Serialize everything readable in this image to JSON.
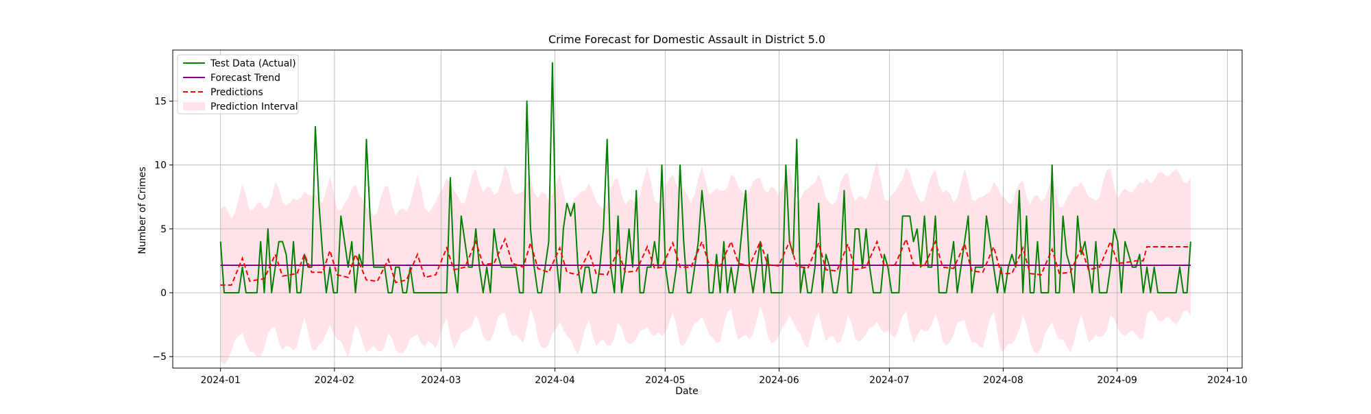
{
  "chart_data": {
    "type": "line",
    "title": "Crime Forecast for Domestic Assault in District 5.0",
    "xlabel": "Date",
    "ylabel": "Number of Crimes",
    "x_ticks": [
      "2024-01",
      "2024-02",
      "2024-03",
      "2024-04",
      "2024-05",
      "2024-06",
      "2024-07",
      "2024-08",
      "2024-09",
      "2024-10"
    ],
    "y_ticks": [
      "−5",
      "0",
      "5",
      "10",
      "15"
    ],
    "xlim": [
      "2023-12-19",
      "2024-10-05"
    ],
    "ylim": [
      -5.9,
      19.0
    ],
    "grid": true,
    "legend_position": "top-left",
    "x_start": "2024-01-01",
    "x_end": "2024-09-21",
    "series": [
      {
        "name": "Test Data (Actual)",
        "style": "solid",
        "color": "#008000",
        "values": [
          4,
          0,
          0,
          0,
          0,
          0,
          2,
          0,
          0,
          0,
          0,
          4,
          0,
          5,
          0,
          2,
          4,
          4,
          3,
          0,
          4,
          0,
          0,
          3,
          2,
          2,
          13,
          7,
          3,
          0,
          2,
          0,
          0,
          6,
          4,
          2,
          4,
          0,
          3,
          2,
          12,
          6,
          2,
          2,
          2,
          2,
          0,
          0,
          2,
          2,
          0,
          0,
          2,
          0,
          0,
          0,
          0,
          0,
          0,
          0,
          0,
          0,
          0,
          9,
          2,
          0,
          6,
          4,
          2,
          2,
          5,
          2,
          0,
          2,
          0,
          5,
          3,
          2,
          2,
          2,
          2,
          2,
          0,
          0,
          15,
          5,
          2,
          0,
          0,
          2,
          4,
          18,
          3,
          0,
          5,
          7,
          6,
          7,
          2,
          0,
          2,
          2,
          0,
          0,
          2,
          5,
          12,
          2,
          0,
          6,
          0,
          2,
          5,
          2,
          8,
          0,
          0,
          2,
          2,
          4,
          2,
          10,
          2,
          0,
          0,
          2,
          10,
          4,
          0,
          0,
          2,
          4,
          8,
          5,
          0,
          0,
          3,
          0,
          4,
          0,
          2,
          0,
          2,
          5,
          8,
          2,
          0,
          2,
          4,
          0,
          3,
          0,
          0,
          0,
          0,
          10,
          4,
          3,
          12,
          0,
          2,
          0,
          0,
          2,
          7,
          0,
          3,
          2,
          0,
          0,
          2,
          8,
          0,
          0,
          5,
          5,
          2,
          5,
          2,
          0,
          0,
          0,
          3,
          2,
          0,
          0,
          0,
          6,
          6,
          6,
          4,
          5,
          2,
          6,
          2,
          2,
          6,
          0,
          0,
          0,
          2,
          4,
          0,
          2,
          4,
          6,
          0,
          2,
          2,
          2,
          6,
          4,
          2,
          0,
          2,
          0,
          2,
          3,
          2,
          8,
          0,
          6,
          0,
          0,
          4,
          0,
          0,
          0,
          10,
          0,
          0,
          6,
          3,
          2,
          0,
          6,
          3,
          4,
          2,
          0,
          4,
          0,
          0,
          0,
          2,
          5,
          4,
          0,
          4,
          3,
          2,
          2,
          3,
          0,
          2,
          0,
          2,
          0,
          0,
          0,
          0,
          0,
          0,
          2,
          0,
          0,
          4
        ]
      },
      {
        "name": "Forecast Trend",
        "style": "solid",
        "color": "#800080",
        "values": [
          2.15,
          2.15
        ]
      },
      {
        "name": "Predictions",
        "style": "dashed",
        "color": "#ff0000",
        "anchors": [
          [
            0,
            0.6
          ],
          [
            3,
            0.6
          ],
          [
            6,
            2.7
          ],
          [
            8,
            0.9
          ],
          [
            12,
            1.1
          ],
          [
            15,
            3.0
          ],
          [
            17,
            1.3
          ],
          [
            21,
            1.5
          ],
          [
            23,
            3.0
          ],
          [
            25,
            1.6
          ],
          [
            28,
            1.6
          ],
          [
            30,
            3.3
          ],
          [
            32,
            1.4
          ],
          [
            35,
            1.2
          ],
          [
            37,
            3.0
          ],
          [
            40,
            1.0
          ],
          [
            43,
            0.9
          ],
          [
            46,
            2.6
          ],
          [
            48,
            0.8
          ],
          [
            51,
            1.0
          ],
          [
            54,
            3.0
          ],
          [
            56,
            1.2
          ],
          [
            59,
            1.4
          ],
          [
            62,
            3.5
          ],
          [
            64,
            1.8
          ],
          [
            67,
            2.0
          ],
          [
            70,
            4.0
          ],
          [
            72,
            2.2
          ],
          [
            75,
            2.3
          ],
          [
            78,
            4.2
          ],
          [
            80,
            2.3
          ],
          [
            83,
            2.0
          ],
          [
            85,
            3.9
          ],
          [
            87,
            1.9
          ],
          [
            90,
            1.6
          ],
          [
            93,
            3.5
          ],
          [
            95,
            1.6
          ],
          [
            98,
            1.4
          ],
          [
            101,
            3.2
          ],
          [
            103,
            1.5
          ],
          [
            106,
            1.4
          ],
          [
            109,
            3.3
          ],
          [
            111,
            1.6
          ],
          [
            114,
            1.7
          ],
          [
            117,
            3.6
          ],
          [
            119,
            1.9
          ],
          [
            121,
            2.0
          ],
          [
            124,
            3.9
          ],
          [
            126,
            2.0
          ],
          [
            129,
            2.0
          ],
          [
            132,
            4.0
          ],
          [
            134,
            2.2
          ],
          [
            137,
            2.1
          ],
          [
            140,
            4.0
          ],
          [
            142,
            2.3
          ],
          [
            145,
            2.1
          ],
          [
            148,
            4.0
          ],
          [
            150,
            2.2
          ],
          [
            153,
            2.1
          ],
          [
            156,
            4.0
          ],
          [
            158,
            2.1
          ],
          [
            161,
            1.9
          ],
          [
            164,
            3.9
          ],
          [
            166,
            1.8
          ],
          [
            169,
            1.7
          ],
          [
            172,
            3.8
          ],
          [
            174,
            1.8
          ],
          [
            177,
            2.0
          ],
          [
            180,
            4.0
          ],
          [
            182,
            2.1
          ],
          [
            185,
            2.2
          ],
          [
            188,
            4.2
          ],
          [
            190,
            2.2
          ],
          [
            193,
            2.1
          ],
          [
            196,
            4.0
          ],
          [
            198,
            2.0
          ],
          [
            201,
            1.9
          ],
          [
            204,
            3.8
          ],
          [
            206,
            1.7
          ],
          [
            209,
            1.6
          ],
          [
            212,
            3.6
          ],
          [
            214,
            1.5
          ],
          [
            217,
            1.5
          ],
          [
            220,
            3.5
          ],
          [
            222,
            1.5
          ],
          [
            225,
            1.4
          ],
          [
            228,
            3.4
          ],
          [
            230,
            1.5
          ],
          [
            233,
            1.6
          ],
          [
            236,
            3.5
          ],
          [
            238,
            1.8
          ],
          [
            241,
            2.0
          ],
          [
            244,
            4.0
          ],
          [
            246,
            2.3
          ],
          [
            249,
            2.4
          ],
          [
            251,
            2.5
          ],
          [
            253,
            2.5
          ],
          [
            254,
            3.6
          ]
        ]
      },
      {
        "name": "Prediction Interval",
        "style": "band",
        "color": "#ffc0cb",
        "half_width": 5.6
      }
    ]
  }
}
